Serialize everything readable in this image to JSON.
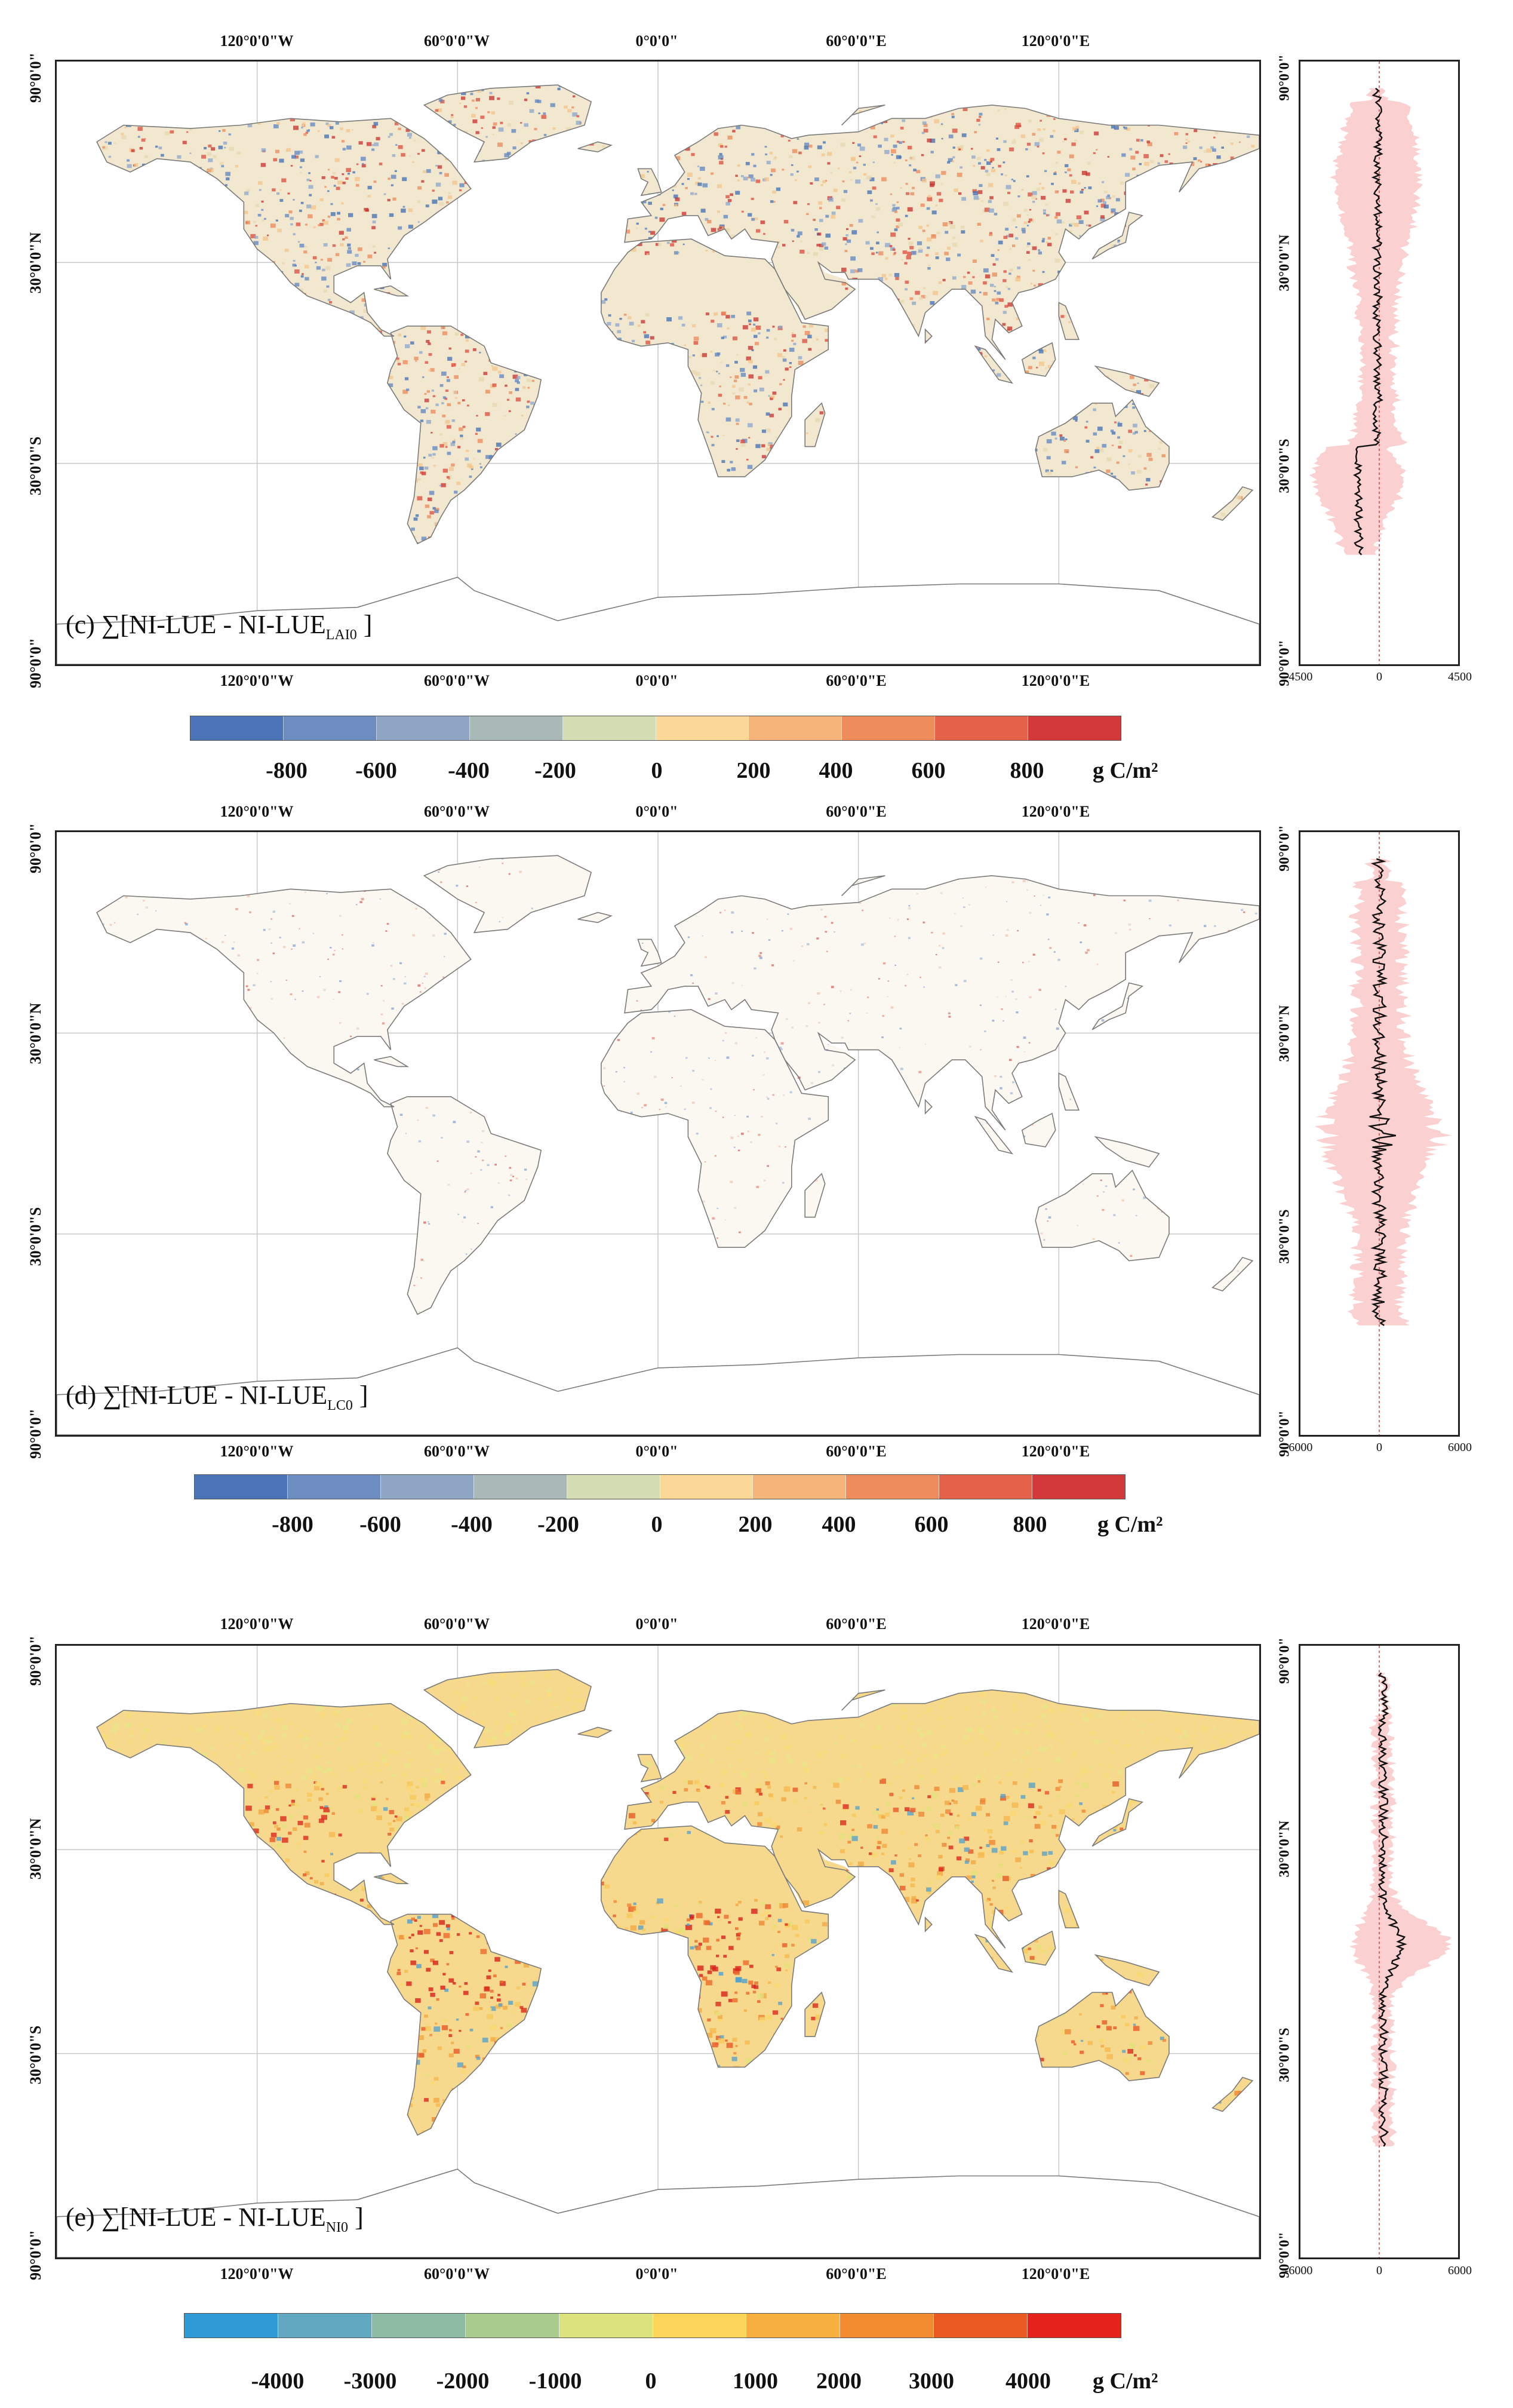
{
  "axes": {
    "top_ticks": [
      "120°0'0\"W",
      "60°0'0\"W",
      "0°0'0\"",
      "60°0'0\"E",
      "120°0'0\"E"
    ],
    "bottom_ticks": [
      "120°0'0\"W",
      "60°0'0\"W",
      "0°0'0\"",
      "60°0'0\"E",
      "120°0'0\"E"
    ],
    "left_ticks": [
      "90°0'0\"",
      "30°0'0\"N",
      "30°0'0\"S",
      "90°0'0\""
    ],
    "right_ticks": [
      "90°0'0\"",
      "30°0'0\"N",
      "30°0'0\"S",
      "90°0'0\""
    ]
  },
  "panels": [
    {
      "id": "c",
      "label_prefix": "(c) ∑[NI-LUE - NI-LUE",
      "label_sub": "LAI0",
      "label_suffix": " ]",
      "profile_ticks": [
        "-4500",
        "0",
        "4500"
      ],
      "profile_range": [
        -4500,
        4500
      ],
      "colorbar_colors": [
        "#4a74b6",
        "#6d8dc0",
        "#8ea6c4",
        "#a9b9b8",
        "#d5ddb5",
        "#fbd898",
        "#f5b57a",
        "#ee8c5c",
        "#e4614a",
        "#d4393a"
      ],
      "colorbar_labels": [
        "-800",
        "-600",
        "-400",
        "-200",
        "0",
        "200",
        "400",
        "600",
        "800"
      ],
      "unit": "g C/m²",
      "map_style": "dense-diverging"
    },
    {
      "id": "d",
      "label_prefix": "(d) ∑[NI-LUE - NI-LUE",
      "label_sub": "LC0",
      "label_suffix": " ]",
      "profile_ticks": [
        "-6000",
        "0",
        "6000"
      ],
      "profile_range": [
        -6000,
        6000
      ],
      "colorbar_colors": [
        "#4a74b6",
        "#6d8dc0",
        "#8ea6c4",
        "#a9b9b8",
        "#d5ddb5",
        "#fbd898",
        "#f5b57a",
        "#ee8c5c",
        "#e4614a",
        "#d4393a"
      ],
      "colorbar_labels": [
        "-800",
        "-600",
        "-400",
        "-200",
        "0",
        "200",
        "400",
        "600",
        "800"
      ],
      "unit": "g C/m²",
      "map_style": "sparse-diverging"
    },
    {
      "id": "e",
      "label_prefix": "(e) ∑[NI-LUE - NI-LUE",
      "label_sub": "NI0",
      "label_suffix": " ]",
      "profile_ticks": [
        "-6000",
        "0",
        "6000"
      ],
      "profile_range": [
        -6000,
        6000
      ],
      "colorbar_colors": [
        "#2e9bd6",
        "#62a8c1",
        "#8dbba4",
        "#a9cc8e",
        "#dbe27e",
        "#fcd45a",
        "#f8b040",
        "#f28a30",
        "#ec5a24",
        "#e5221c"
      ],
      "colorbar_labels": [
        "-4000",
        "-3000",
        "-2000",
        "-1000",
        "0",
        "1000",
        "2000",
        "3000",
        "4000"
      ],
      "unit": "g C/m²",
      "map_style": "warm"
    }
  ]
}
